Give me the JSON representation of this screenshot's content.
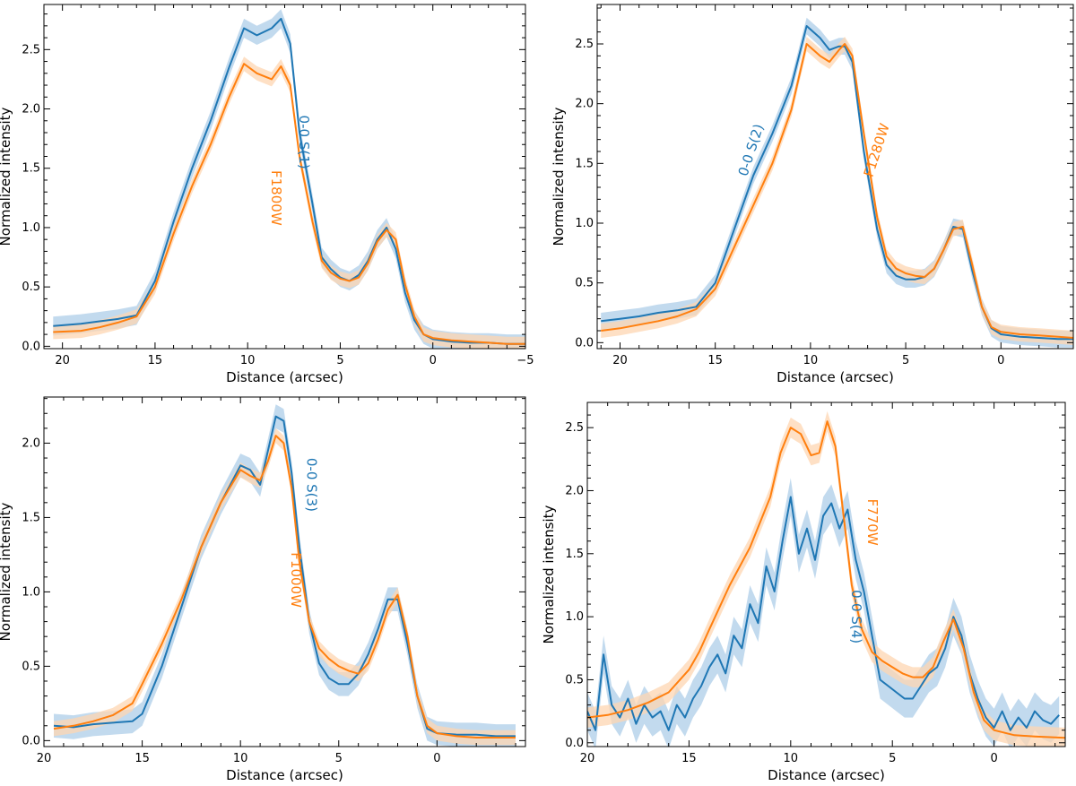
{
  "colors": {
    "blue": "#1f77b4",
    "orange": "#ff7f0e",
    "blue_band": "#aecde8",
    "orange_band": "#fdd5b1"
  },
  "chart_data": [
    {
      "type": "line",
      "xlabel": "Distance (arcsec)",
      "ylabel": "Normalized intensity",
      "xlim": [
        21,
        -5
      ],
      "ylim": [
        -0.02,
        2.88
      ],
      "xticks": [
        20,
        15,
        10,
        5,
        0,
        -5
      ],
      "yticks": [
        0.0,
        0.5,
        1.0,
        1.5,
        2.0,
        2.5
      ],
      "xtick_labels": [
        "20",
        "15",
        "10",
        "5",
        "0",
        "−5"
      ],
      "ytick_labels": [
        "0.0",
        "0.5",
        "1.0",
        "1.5",
        "2.0",
        "2.5"
      ],
      "series": [
        {
          "name": "0-0 S(1)",
          "color": "blue",
          "x": [
            20.5,
            19,
            18,
            17,
            16,
            15,
            14,
            13,
            12,
            11,
            10.2,
            9.5,
            8.7,
            8.2,
            7.7,
            7.2,
            6.5,
            6,
            5.5,
            5,
            4.5,
            4,
            3.5,
            3,
            2.5,
            2,
            1.5,
            1,
            0.5,
            0,
            -1,
            -2,
            -3,
            -4,
            -5
          ],
          "y": [
            0.17,
            0.19,
            0.21,
            0.23,
            0.26,
            0.55,
            1.05,
            1.5,
            1.9,
            2.35,
            2.68,
            2.62,
            2.68,
            2.76,
            2.55,
            1.8,
            1.2,
            0.75,
            0.65,
            0.58,
            0.55,
            0.6,
            0.72,
            0.9,
            1.0,
            0.82,
            0.45,
            0.22,
            0.1,
            0.06,
            0.04,
            0.03,
            0.03,
            0.02,
            0.02
          ],
          "err": 0.08
        },
        {
          "name": "F1800W",
          "color": "orange",
          "x": [
            20.5,
            19,
            18,
            17,
            16,
            15,
            14,
            13,
            12,
            11,
            10.2,
            9.5,
            8.7,
            8.2,
            7.7,
            7.2,
            6.5,
            6,
            5.5,
            5,
            4.5,
            4,
            3.5,
            3,
            2.5,
            2,
            1.5,
            1,
            0.5,
            0,
            -1,
            -2,
            -3,
            -4,
            -5
          ],
          "y": [
            0.12,
            0.13,
            0.16,
            0.2,
            0.25,
            0.5,
            0.95,
            1.35,
            1.7,
            2.1,
            2.38,
            2.3,
            2.25,
            2.36,
            2.2,
            1.6,
            1.05,
            0.72,
            0.62,
            0.57,
            0.55,
            0.58,
            0.7,
            0.88,
            0.98,
            0.9,
            0.52,
            0.25,
            0.1,
            0.07,
            0.05,
            0.04,
            0.03,
            0.02,
            0.02
          ],
          "err": 0.06
        }
      ],
      "annotations": [
        {
          "text": "0-0 S(1)",
          "x": 7.2,
          "y": 1.72,
          "color": "blue"
        },
        {
          "text": "F1800W",
          "x": 8.7,
          "y": 1.25,
          "color": "orange"
        }
      ]
    },
    {
      "type": "line",
      "xlabel": "Distance (arcsec)",
      "ylabel": "Normalized intensity",
      "xlim": [
        21.2,
        -3.8
      ],
      "ylim": [
        -0.05,
        2.83
      ],
      "xticks": [
        20,
        15,
        10,
        5,
        0
      ],
      "yticks": [
        0.0,
        0.5,
        1.0,
        1.5,
        2.0,
        2.5
      ],
      "xtick_labels": [
        "20",
        "15",
        "10",
        "5",
        "0"
      ],
      "ytick_labels": [
        "0.0",
        "0.5",
        "1.0",
        "1.5",
        "2.0",
        "2.5"
      ],
      "series": [
        {
          "name": "0-0 S(2)",
          "color": "blue",
          "x": [
            21,
            20,
            19,
            18,
            17,
            16,
            15,
            14,
            13,
            12,
            11,
            10.2,
            9.5,
            9,
            8.5,
            8.2,
            7.8,
            7.2,
            6.5,
            6,
            5.5,
            5,
            4.5,
            4,
            3.5,
            3,
            2.5,
            2,
            1.5,
            1,
            0.5,
            0,
            -1,
            -2,
            -3,
            -3.8
          ],
          "y": [
            0.18,
            0.2,
            0.22,
            0.25,
            0.27,
            0.3,
            0.5,
            0.95,
            1.4,
            1.75,
            2.15,
            2.65,
            2.55,
            2.45,
            2.48,
            2.48,
            2.35,
            1.6,
            0.95,
            0.65,
            0.56,
            0.53,
            0.53,
            0.55,
            0.62,
            0.78,
            0.97,
            0.95,
            0.6,
            0.3,
            0.12,
            0.07,
            0.05,
            0.04,
            0.03,
            0.03
          ],
          "err": 0.07
        },
        {
          "name": "F1280W",
          "color": "orange",
          "x": [
            21,
            20,
            19,
            18,
            17,
            16,
            15,
            14,
            13,
            12,
            11,
            10.2,
            9.5,
            9,
            8.5,
            8.2,
            7.8,
            7.2,
            6.5,
            6,
            5.5,
            5,
            4.5,
            4,
            3.5,
            3,
            2.5,
            2,
            1.5,
            1,
            0.5,
            0,
            -1,
            -2,
            -3,
            -3.8
          ],
          "y": [
            0.1,
            0.12,
            0.15,
            0.18,
            0.22,
            0.28,
            0.45,
            0.8,
            1.15,
            1.5,
            1.95,
            2.5,
            2.4,
            2.35,
            2.45,
            2.5,
            2.4,
            1.75,
            1.05,
            0.72,
            0.62,
            0.58,
            0.56,
            0.55,
            0.62,
            0.78,
            0.95,
            0.97,
            0.65,
            0.3,
            0.13,
            0.09,
            0.07,
            0.06,
            0.05,
            0.04
          ],
          "err": 0.06
        }
      ],
      "annotations": [
        {
          "text": "0-0 S(2)",
          "x": 12.9,
          "y": 1.6,
          "color": "blue"
        },
        {
          "text": "F1280W",
          "x": 6.3,
          "y": 1.6,
          "color": "orange"
        }
      ]
    },
    {
      "type": "line",
      "xlabel": "Distance (arcsec)",
      "ylabel": "Normalized intensity",
      "xlim": [
        20,
        -4.5
      ],
      "ylim": [
        -0.04,
        2.31
      ],
      "xticks": [
        20,
        15,
        10,
        5,
        0
      ],
      "yticks": [
        0.0,
        0.5,
        1.0,
        1.5,
        2.0
      ],
      "xtick_labels": [
        "20",
        "15",
        "10",
        "5",
        "0"
      ],
      "ytick_labels": [
        "0.0",
        "0.5",
        "1.0",
        "1.5",
        "2.0"
      ],
      "series": [
        {
          "name": "0-0 S(3)",
          "color": "blue",
          "x": [
            19.5,
            18.5,
            17.5,
            16.5,
            15.5,
            15,
            14,
            13,
            12,
            11,
            10,
            9.5,
            9,
            8.6,
            8.2,
            7.8,
            7.4,
            7,
            6.5,
            6,
            5.5,
            5,
            4.5,
            4,
            3.5,
            3,
            2.5,
            2,
            1.5,
            1,
            0.5,
            0,
            -1,
            -2,
            -3,
            -4
          ],
          "y": [
            0.1,
            0.09,
            0.11,
            0.12,
            0.13,
            0.18,
            0.5,
            0.9,
            1.3,
            1.6,
            1.85,
            1.82,
            1.72,
            1.95,
            2.18,
            2.15,
            1.8,
            1.3,
            0.8,
            0.52,
            0.42,
            0.38,
            0.38,
            0.45,
            0.58,
            0.75,
            0.95,
            0.95,
            0.65,
            0.3,
            0.08,
            0.05,
            0.04,
            0.04,
            0.03,
            0.03
          ],
          "err": 0.08
        },
        {
          "name": "F1000W",
          "color": "orange",
          "x": [
            19.5,
            18.5,
            17.5,
            16.5,
            15.5,
            15,
            14,
            13,
            12,
            11,
            10,
            9.5,
            9,
            8.6,
            8.2,
            7.8,
            7.4,
            7,
            6.5,
            6,
            5.5,
            5,
            4.5,
            4,
            3.5,
            3,
            2.5,
            2,
            1.5,
            1,
            0.5,
            0,
            -1,
            -2,
            -3,
            -4
          ],
          "y": [
            0.08,
            0.1,
            0.13,
            0.17,
            0.25,
            0.38,
            0.65,
            0.95,
            1.3,
            1.6,
            1.82,
            1.78,
            1.75,
            1.88,
            2.05,
            2.0,
            1.7,
            1.2,
            0.8,
            0.62,
            0.55,
            0.5,
            0.47,
            0.45,
            0.52,
            0.68,
            0.88,
            0.98,
            0.7,
            0.3,
            0.1,
            0.05,
            0.03,
            0.02,
            0.02,
            0.02
          ],
          "err": 0.05
        }
      ],
      "annotations": [
        {
          "text": "0-0 S(3)",
          "x": 6.6,
          "y": 1.72,
          "color": "blue"
        },
        {
          "text": "F1000W",
          "x": 7.4,
          "y": 1.08,
          "color": "orange"
        }
      ]
    },
    {
      "type": "line",
      "xlabel": "Distance (arcsec)",
      "ylabel": "Normalized intensity",
      "xlim": [
        20,
        -3.5
      ],
      "ylim": [
        -0.03,
        2.7
      ],
      "xticks": [
        20,
        15,
        10,
        5,
        0
      ],
      "yticks": [
        0.0,
        0.5,
        1.0,
        1.5,
        2.0,
        2.5
      ],
      "xtick_labels": [
        "20",
        "15",
        "10",
        "5",
        "0"
      ],
      "ytick_labels": [
        "0.0",
        "0.5",
        "1.0",
        "1.5",
        "2.0",
        "2.5"
      ],
      "series": [
        {
          "name": "0-0 S(4)",
          "color": "blue",
          "x": [
            20,
            19.6,
            19.2,
            18.8,
            18.4,
            18,
            17.6,
            17.2,
            16.8,
            16.4,
            16,
            15.6,
            15.2,
            14.8,
            14.4,
            14,
            13.6,
            13.2,
            12.8,
            12.4,
            12,
            11.6,
            11.2,
            10.8,
            10.4,
            10,
            9.6,
            9.2,
            8.8,
            8.4,
            8,
            7.6,
            7.2,
            6.8,
            6.4,
            6,
            5.6,
            5.2,
            4.8,
            4.4,
            4,
            3.6,
            3.2,
            2.8,
            2.4,
            2,
            1.6,
            1.2,
            0.8,
            0.4,
            0,
            -0.4,
            -0.8,
            -1.2,
            -1.6,
            -2,
            -2.4,
            -2.8,
            -3.2
          ],
          "y": [
            0.25,
            0.1,
            0.7,
            0.3,
            0.2,
            0.35,
            0.15,
            0.3,
            0.2,
            0.25,
            0.1,
            0.3,
            0.2,
            0.35,
            0.45,
            0.6,
            0.7,
            0.55,
            0.85,
            0.75,
            1.1,
            0.95,
            1.4,
            1.2,
            1.6,
            1.95,
            1.5,
            1.7,
            1.45,
            1.8,
            1.9,
            1.7,
            1.85,
            1.45,
            1.2,
            0.85,
            0.5,
            0.45,
            0.4,
            0.35,
            0.35,
            0.45,
            0.55,
            0.6,
            0.75,
            1.0,
            0.85,
            0.55,
            0.35,
            0.2,
            0.12,
            0.25,
            0.1,
            0.2,
            0.12,
            0.25,
            0.18,
            0.15,
            0.22
          ],
          "err": 0.15
        },
        {
          "name": "F770W",
          "color": "orange",
          "x": [
            20,
            19,
            18,
            17,
            16,
            15,
            14.5,
            14,
            13,
            12,
            11,
            10.5,
            10,
            9.5,
            9,
            8.6,
            8.2,
            7.8,
            7.4,
            7,
            6.5,
            6,
            5.5,
            5,
            4.5,
            4,
            3.5,
            3,
            2.5,
            2,
            1.5,
            1,
            0.5,
            0,
            -1,
            -2,
            -3.5
          ],
          "y": [
            0.2,
            0.22,
            0.26,
            0.32,
            0.4,
            0.58,
            0.72,
            0.9,
            1.25,
            1.55,
            1.95,
            2.3,
            2.5,
            2.45,
            2.28,
            2.3,
            2.55,
            2.35,
            1.8,
            1.25,
            0.9,
            0.72,
            0.65,
            0.6,
            0.55,
            0.52,
            0.52,
            0.6,
            0.8,
            0.98,
            0.75,
            0.4,
            0.18,
            0.1,
            0.06,
            0.05,
            0.04
          ],
          "err": 0.08
        }
      ],
      "annotations": [
        {
          "text": "F770W",
          "x": 6.2,
          "y": 1.75,
          "color": "orange"
        },
        {
          "text": "0-0 S(4)",
          "x": 7.0,
          "y": 1.0,
          "color": "blue"
        }
      ]
    }
  ]
}
